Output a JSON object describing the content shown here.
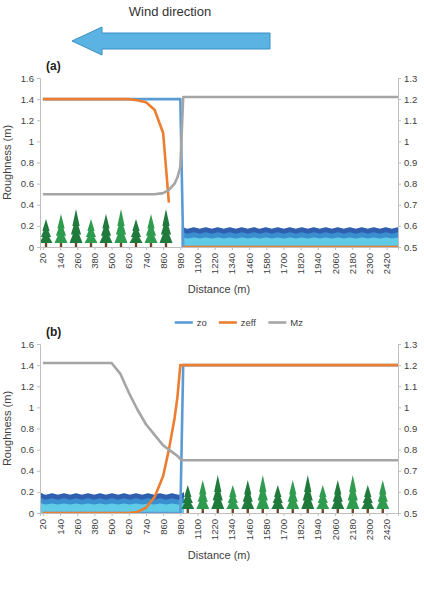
{
  "chart_data": [
    {
      "type": "line",
      "title": "(a)",
      "annotations": [
        "Wind direction"
      ],
      "xlabel": "Distance (m)",
      "ylabel": "Roughness (m)",
      "x": [
        20,
        140,
        260,
        380,
        500,
        560,
        620,
        680,
        740,
        800,
        860,
        900,
        940,
        960,
        980,
        1000,
        1100,
        1400,
        1700,
        2000,
        2300,
        2500
      ],
      "xlim": [
        0,
        2500
      ],
      "xticks": [
        20,
        140,
        260,
        380,
        500,
        620,
        740,
        860,
        980,
        1100,
        1220,
        1340,
        1460,
        1580,
        1700,
        1820,
        1940,
        2060,
        2180,
        2300,
        2420
      ],
      "ylim": [
        0,
        1.6
      ],
      "yticks": [
        0,
        0.2,
        0.4,
        0.6,
        0.8,
        1,
        1.2,
        1.4,
        1.6
      ],
      "y2lim": [
        0.5,
        1.3
      ],
      "y2ticks": [
        0.5,
        0.6,
        0.7,
        0.8,
        0.9,
        1,
        1.1,
        1.2,
        1.3
      ],
      "grid": false,
      "series": [
        {
          "name": "zo",
          "color": "#5b9bd5",
          "values": [
            1.4,
            1.4,
            1.4,
            1.4,
            1.4,
            1.4,
            1.4,
            1.4,
            1.4,
            1.4,
            1.4,
            1.4,
            1.4,
            1.4,
            1.4,
            0,
            0,
            0,
            0,
            0,
            0,
            0
          ]
        },
        {
          "name": "zeff",
          "color": "#ed7d31",
          "values": [
            1.4,
            1.4,
            1.4,
            1.4,
            1.4,
            1.4,
            1.4,
            1.39,
            1.37,
            1.3,
            1.08,
            0.42,
            null,
            null,
            null,
            0,
            0,
            0,
            0,
            0,
            0,
            0
          ]
        },
        {
          "name": "Mz",
          "color": "#a5a5a5",
          "axis": "y2",
          "values": [
            0.75,
            0.75,
            0.75,
            0.75,
            0.75,
            0.75,
            0.75,
            0.75,
            0.75,
            0.75,
            0.755,
            0.77,
            0.8,
            0.83,
            0.88,
            1.21,
            1.21,
            1.21,
            1.21,
            1.21,
            1.21,
            1.21
          ]
        }
      ]
    },
    {
      "type": "line",
      "title": "(b)",
      "legend": "top",
      "xlabel": "Distance (m)",
      "ylabel": "Roughness (m)",
      "x": [
        20,
        140,
        260,
        380,
        500,
        560,
        620,
        680,
        740,
        800,
        860,
        900,
        940,
        960,
        980,
        1000,
        1100,
        1400,
        1700,
        2000,
        2300,
        2500
      ],
      "xlim": [
        0,
        2500
      ],
      "xticks": [
        20,
        140,
        260,
        380,
        500,
        620,
        740,
        860,
        980,
        1100,
        1220,
        1340,
        1460,
        1580,
        1700,
        1820,
        1940,
        2060,
        2180,
        2300,
        2420
      ],
      "ylim": [
        0,
        1.6
      ],
      "yticks": [
        0,
        0.2,
        0.4,
        0.6,
        0.8,
        1,
        1.2,
        1.4,
        1.6
      ],
      "y2lim": [
        0.5,
        1.3
      ],
      "y2ticks": [
        0.5,
        0.6,
        0.7,
        0.8,
        0.9,
        1,
        1.1,
        1.2,
        1.3
      ],
      "grid": false,
      "series": [
        {
          "name": "zo",
          "color": "#5b9bd5",
          "values": [
            0,
            0,
            0,
            0,
            0,
            0,
            0,
            0,
            0,
            0,
            0,
            0,
            0,
            0,
            0,
            1.4,
            1.4,
            1.4,
            1.4,
            1.4,
            1.4,
            1.4
          ]
        },
        {
          "name": "zeff",
          "color": "#ed7d31",
          "values": [
            0,
            0,
            0,
            0,
            0,
            0,
            0,
            0.01,
            0.05,
            0.15,
            0.35,
            0.6,
            0.9,
            1.1,
            1.4,
            1.4,
            1.4,
            1.4,
            1.4,
            1.4,
            1.4,
            1.4
          ]
        },
        {
          "name": "Mz",
          "color": "#a5a5a5",
          "axis": "y2",
          "values": [
            1.21,
            1.21,
            1.21,
            1.21,
            1.21,
            1.16,
            1.07,
            0.99,
            0.92,
            0.87,
            0.82,
            0.8,
            0.78,
            0.77,
            0.755,
            0.75,
            0.75,
            0.75,
            0.75,
            0.75,
            0.75,
            0.75
          ]
        }
      ]
    }
  ]
}
